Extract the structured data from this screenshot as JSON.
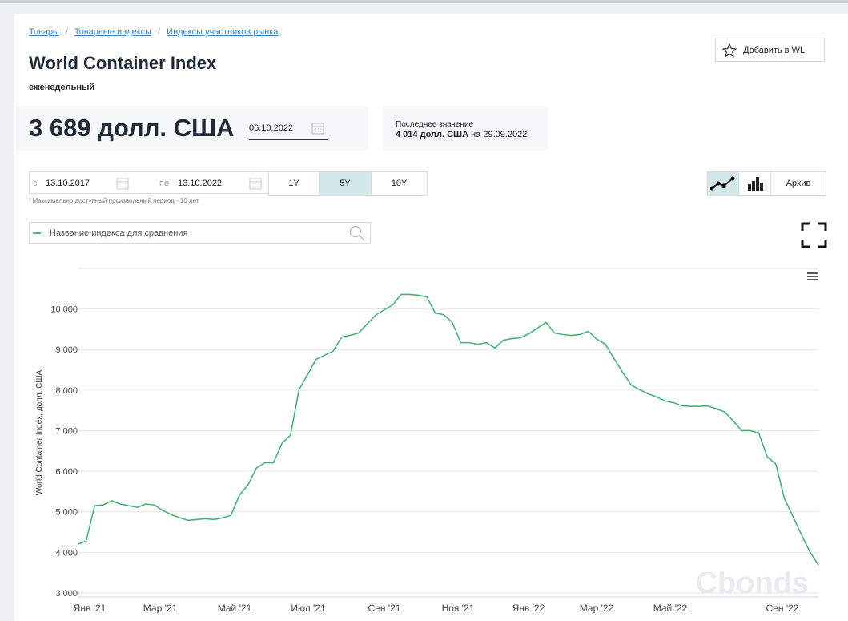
{
  "breadcrumbs": [
    "Товары",
    "Товарные индексы",
    "Индексы участников рынка"
  ],
  "header": {
    "title": "World Container Index",
    "frequency": "еженедельный",
    "add_button": "Добавить в WL"
  },
  "quote": {
    "value": "3 689 долл. США",
    "date": "06.10.2022",
    "last_label": "Последнее значение",
    "last_value": "4 014 долл. США",
    "last_date": "на 29.09.2022"
  },
  "period": {
    "from_label": "с",
    "from": "13.10.2017",
    "to_label": "по",
    "to": "13.10.2022",
    "buttons": [
      "1Y",
      "5Y",
      "10Y"
    ],
    "note": "! Максимально доступный произвольный период - 10 лет",
    "archive": "Архив"
  },
  "compare": {
    "placeholder": "Название индекса для сравнения"
  },
  "chart_data": {
    "type": "line",
    "ylabel": "World Container Index, долл. США",
    "watermark": "Cbonds",
    "color": "#45b374",
    "xtick_labels": [
      "Янв '21",
      "Мар '21",
      "Май '21",
      "Июл '21",
      "Сен '21",
      "Ноя '21",
      "Янв '22",
      "Мар '22",
      "Май '22",
      "Сен '22"
    ],
    "ylim": [
      2900,
      11000
    ],
    "yticks": [
      {
        "value": 3000,
        "label": "3 000"
      },
      {
        "value": 4000,
        "label": "4 000"
      },
      {
        "value": 5000,
        "label": "5 000"
      },
      {
        "value": 6000,
        "label": "6 000"
      },
      {
        "value": 7000,
        "label": "7 000"
      },
      {
        "value": 8000,
        "label": "8 000"
      },
      {
        "value": 9000,
        "label": "9 000"
      },
      {
        "value": 10000,
        "label": "10 000"
      }
    ],
    "grid": true,
    "values": [
      4200,
      4280,
      5150,
      5170,
      5270,
      5190,
      5150,
      5110,
      5190,
      5170,
      5030,
      4930,
      4850,
      4790,
      4810,
      4830,
      4810,
      4850,
      4910,
      5410,
      5660,
      6080,
      6210,
      6210,
      6690,
      6890,
      8010,
      8380,
      8760,
      8860,
      8960,
      9310,
      9350,
      9410,
      9630,
      9850,
      9980,
      10100,
      10360,
      10360,
      10340,
      10300,
      9900,
      9860,
      9670,
      9170,
      9170,
      9130,
      9170,
      9040,
      9230,
      9270,
      9290,
      9390,
      9530,
      9670,
      9410,
      9370,
      9350,
      9370,
      9450,
      9250,
      9130,
      8780,
      8440,
      8130,
      8010,
      7910,
      7830,
      7730,
      7690,
      7610,
      7600,
      7600,
      7610,
      7540,
      7460,
      7240,
      7000,
      7000,
      6940,
      6350,
      6180,
      5330,
      4890,
      4440,
      4014,
      3689
    ]
  }
}
